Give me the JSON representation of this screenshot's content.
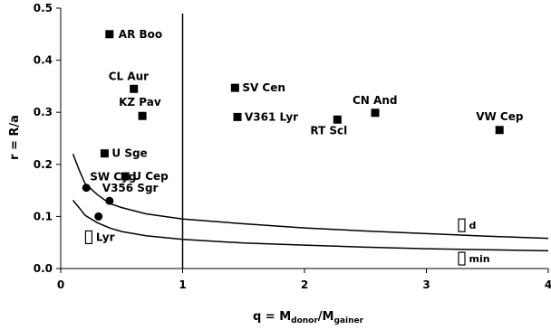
{
  "chart_data": {
    "type": "scatter",
    "xlabel": "q = M",
    "xlabel_sub1": "donor",
    "xlabel_mid": "/M",
    "xlabel_sub2": "gainer",
    "ylabel": "r = R/a",
    "xlim": [
      0,
      4
    ],
    "ylim": [
      0,
      0.5
    ],
    "xticks": [
      "0",
      "1",
      "2",
      "3",
      "4"
    ],
    "yticks": [
      "0.0",
      "0.1",
      "0.2",
      "0.3",
      "0.4",
      "0.5"
    ],
    "grid": false,
    "vertical_line_x": 1,
    "series": [
      {
        "marker": "filled-square",
        "points": [
          {
            "label": "AR Boo",
            "x": 0.4,
            "y": 0.45
          },
          {
            "label": "CL Aur",
            "x": 0.6,
            "y": 0.345
          },
          {
            "label": "KZ Pav",
            "x": 0.67,
            "y": 0.293
          },
          {
            "label": "U Sge",
            "x": 0.36,
            "y": 0.221
          },
          {
            "label": "U Cep",
            "x": 0.53,
            "y": 0.177
          },
          {
            "label": "SV Cen",
            "x": 1.43,
            "y": 0.347
          },
          {
            "label": "V361 Lyr",
            "x": 1.45,
            "y": 0.291
          },
          {
            "label": "CN And",
            "x": 2.58,
            "y": 0.299
          },
          {
            "label": "RT Scl",
            "x": 2.27,
            "y": 0.286
          },
          {
            "label": "VW Cep",
            "x": 3.6,
            "y": 0.266
          }
        ]
      },
      {
        "marker": "filled-circle",
        "points": [
          {
            "label": "SW Cyg",
            "x": 0.21,
            "y": 0.155
          },
          {
            "label": "V356 Sgr",
            "x": 0.4,
            "y": 0.13
          },
          {
            "label": "",
            "x": 0.31,
            "y": 0.1
          }
        ]
      },
      {
        "marker": "open-rectangle",
        "points": [
          {
            "label": "Lyr",
            "x": 0.23,
            "y": 0.06
          }
        ]
      }
    ],
    "curves": [
      {
        "name": "d",
        "points": [
          [
            0.1,
            0.22
          ],
          [
            0.15,
            0.19
          ],
          [
            0.2,
            0.163
          ],
          [
            0.3,
            0.142
          ],
          [
            0.4,
            0.125
          ],
          [
            0.5,
            0.117
          ],
          [
            0.7,
            0.105
          ],
          [
            1.0,
            0.095
          ],
          [
            1.5,
            0.086
          ],
          [
            2.0,
            0.078
          ],
          [
            2.5,
            0.072
          ],
          [
            3.0,
            0.067
          ],
          [
            3.5,
            0.062
          ],
          [
            4.0,
            0.058
          ]
        ]
      },
      {
        "name": "min",
        "points": [
          [
            0.1,
            0.131
          ],
          [
            0.15,
            0.117
          ],
          [
            0.2,
            0.102
          ],
          [
            0.3,
            0.088
          ],
          [
            0.4,
            0.078
          ],
          [
            0.5,
            0.071
          ],
          [
            0.7,
            0.063
          ],
          [
            1.0,
            0.056
          ],
          [
            1.5,
            0.049
          ],
          [
            2.0,
            0.045
          ],
          [
            2.5,
            0.041
          ],
          [
            3.0,
            0.038
          ],
          [
            3.5,
            0.036
          ],
          [
            4.0,
            0.034
          ]
        ]
      }
    ]
  }
}
